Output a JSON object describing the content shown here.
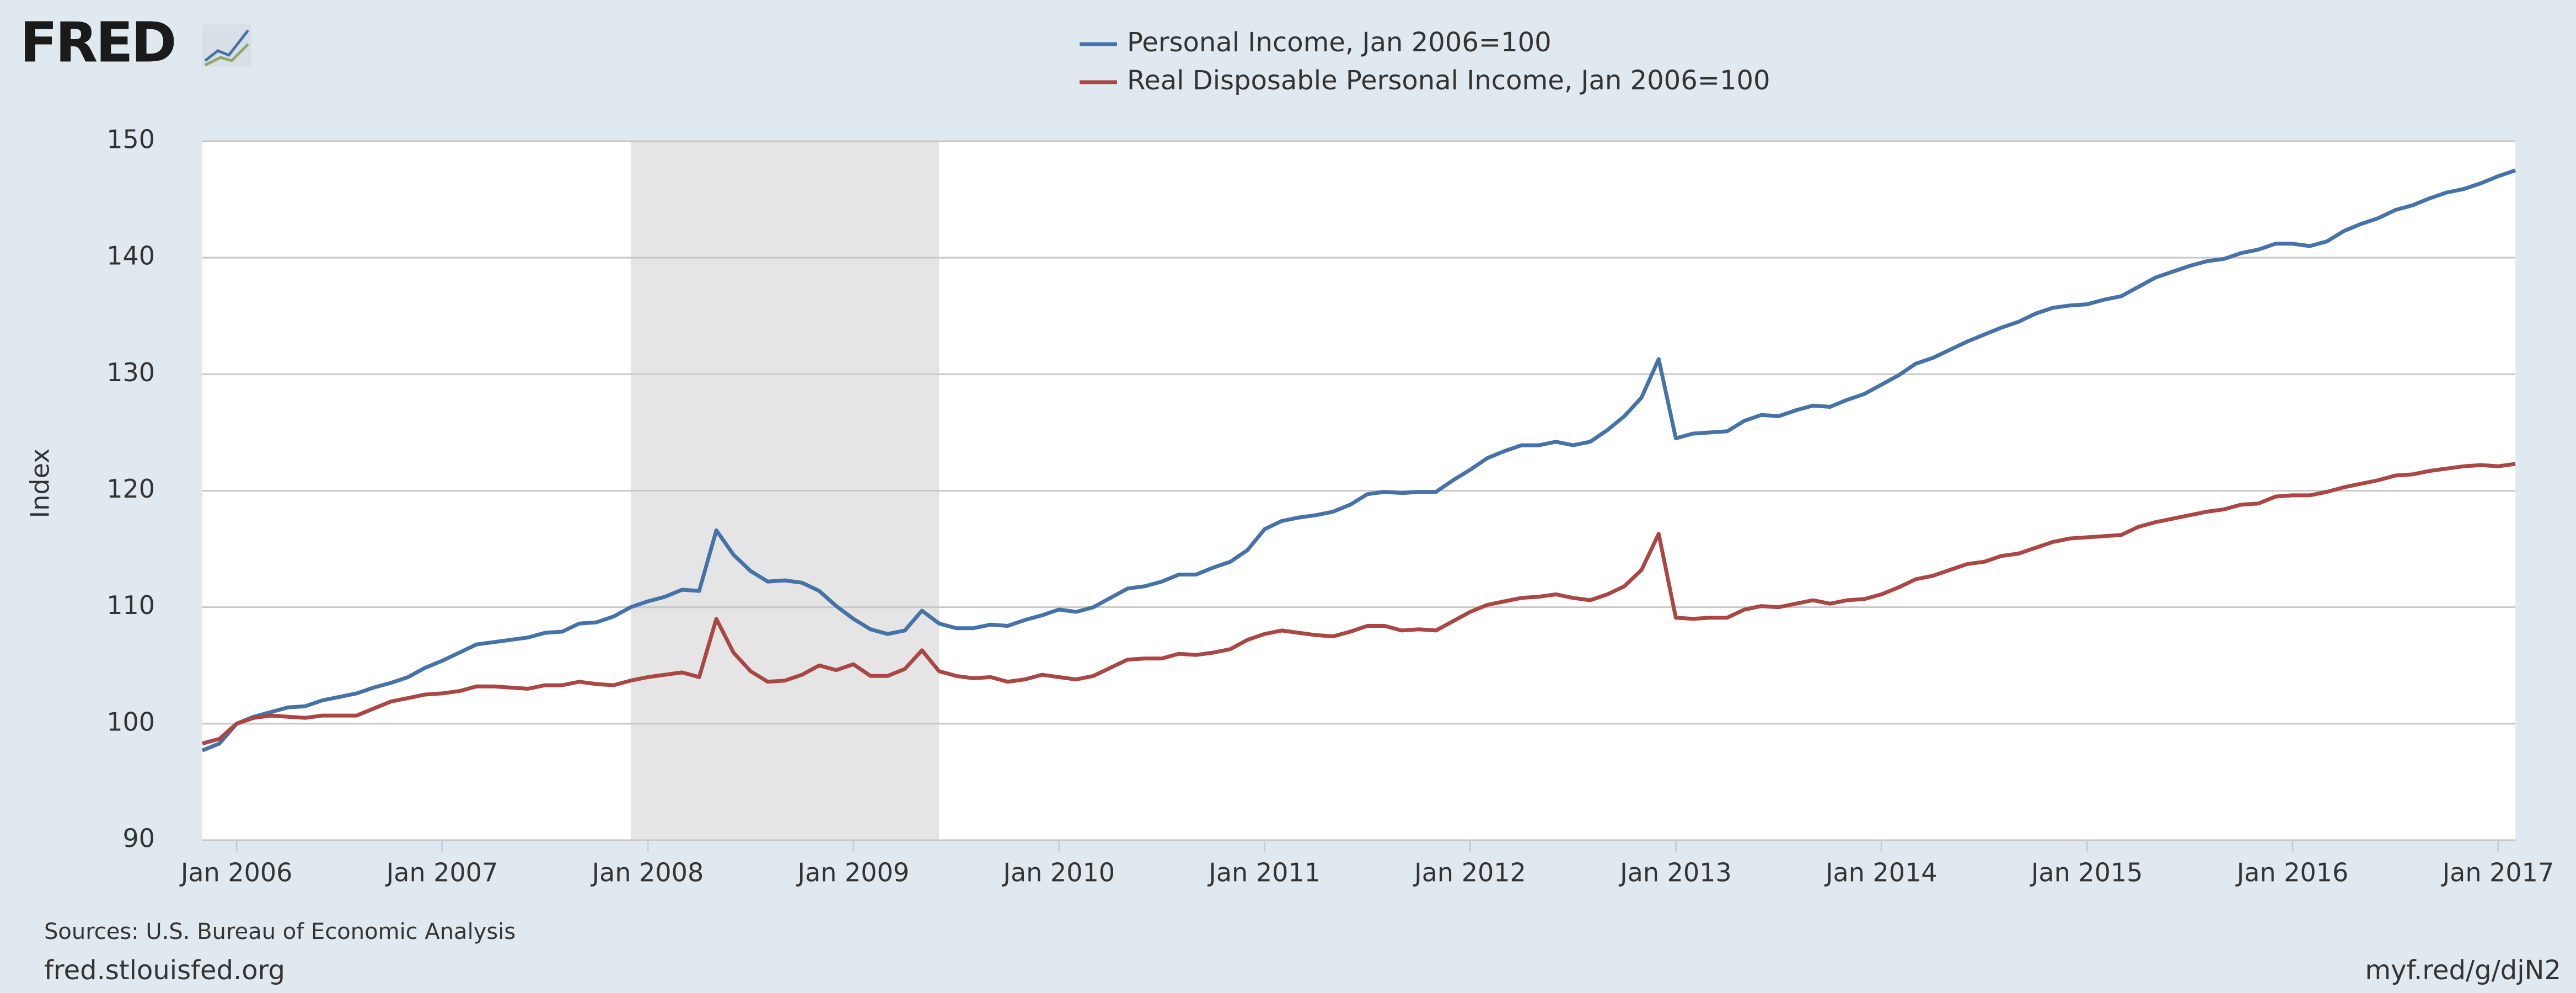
{
  "chart_data": {
    "type": "line",
    "logo": "FRED",
    "y_label": "Index",
    "source": "Sources: U.S. Bureau of Economic Analysis",
    "site": "fred.stlouisfed.org",
    "link": "myf.red/g/djN2",
    "x": [
      "2005-11",
      "2005-12",
      "2006-01",
      "2006-02",
      "2006-03",
      "2006-04",
      "2006-05",
      "2006-06",
      "2006-07",
      "2006-08",
      "2006-09",
      "2006-10",
      "2006-11",
      "2006-12",
      "2007-01",
      "2007-02",
      "2007-03",
      "2007-04",
      "2007-05",
      "2007-06",
      "2007-07",
      "2007-08",
      "2007-09",
      "2007-10",
      "2007-11",
      "2007-12",
      "2008-01",
      "2008-02",
      "2008-03",
      "2008-04",
      "2008-05",
      "2008-06",
      "2008-07",
      "2008-08",
      "2008-09",
      "2008-10",
      "2008-11",
      "2008-12",
      "2009-01",
      "2009-02",
      "2009-03",
      "2009-04",
      "2009-05",
      "2009-06",
      "2009-07",
      "2009-08",
      "2009-09",
      "2009-10",
      "2009-11",
      "2009-12",
      "2010-01",
      "2010-02",
      "2010-03",
      "2010-04",
      "2010-05",
      "2010-06",
      "2010-07",
      "2010-08",
      "2010-09",
      "2010-10",
      "2010-11",
      "2010-12",
      "2011-01",
      "2011-02",
      "2011-03",
      "2011-04",
      "2011-05",
      "2011-06",
      "2011-07",
      "2011-08",
      "2011-09",
      "2011-10",
      "2011-11",
      "2011-12",
      "2012-01",
      "2012-02",
      "2012-03",
      "2012-04",
      "2012-05",
      "2012-06",
      "2012-07",
      "2012-08",
      "2012-09",
      "2012-10",
      "2012-11",
      "2012-12",
      "2013-01",
      "2013-02",
      "2013-03",
      "2013-04",
      "2013-05",
      "2013-06",
      "2013-07",
      "2013-08",
      "2013-09",
      "2013-10",
      "2013-11",
      "2013-12",
      "2014-01",
      "2014-02",
      "2014-03",
      "2014-04",
      "2014-05",
      "2014-06",
      "2014-07",
      "2014-08",
      "2014-09",
      "2014-10",
      "2014-11",
      "2014-12",
      "2015-01",
      "2015-02",
      "2015-03",
      "2015-04",
      "2015-05",
      "2015-06",
      "2015-07",
      "2015-08",
      "2015-09",
      "2015-10",
      "2015-11",
      "2015-12",
      "2016-01",
      "2016-02",
      "2016-03",
      "2016-04",
      "2016-05",
      "2016-06",
      "2016-07",
      "2016-08",
      "2016-09",
      "2016-10",
      "2016-11",
      "2016-12",
      "2017-01",
      "2017-02"
    ],
    "series": [
      {
        "name": "Personal Income, Jan 2006=100",
        "color": "#4572a7",
        "values": [
          97.7,
          98.3,
          100,
          100.6,
          101.0,
          101.4,
          101.5,
          102.0,
          102.3,
          102.6,
          103.1,
          103.5,
          104.0,
          104.8,
          105.4,
          106.1,
          106.8,
          107.0,
          107.2,
          107.4,
          107.8,
          107.9,
          108.6,
          108.7,
          109.2,
          110.0,
          110.5,
          110.9,
          111.5,
          111.4,
          116.6,
          114.5,
          113.1,
          112.2,
          112.3,
          112.1,
          111.4,
          110.1,
          109.0,
          108.1,
          107.7,
          108.0,
          109.7,
          108.6,
          108.2,
          108.2,
          108.5,
          108.4,
          108.9,
          109.3,
          109.8,
          109.6,
          110.0,
          110.8,
          111.6,
          111.8,
          112.2,
          112.8,
          112.8,
          113.4,
          113.9,
          114.9,
          116.7,
          117.4,
          117.7,
          117.9,
          118.2,
          118.8,
          119.7,
          119.9,
          119.8,
          119.9,
          119.9,
          120.9,
          121.8,
          122.8,
          123.4,
          123.9,
          123.9,
          124.2,
          123.9,
          124.2,
          125.2,
          126.4,
          128.0,
          131.3,
          124.5,
          124.9,
          125.0,
          125.1,
          126.0,
          126.5,
          126.4,
          126.9,
          127.3,
          127.2,
          127.8,
          128.3,
          129.1,
          129.9,
          130.9,
          131.4,
          132.1,
          132.8,
          133.4,
          134.0,
          134.5,
          135.2,
          135.7,
          135.9,
          136.0,
          136.4,
          136.7,
          137.5,
          138.3,
          138.8,
          139.3,
          139.7,
          139.9,
          140.4,
          140.7,
          141.2,
          141.2,
          141.0,
          141.4,
          142.3,
          142.9,
          143.4,
          144.1,
          144.5,
          145.1,
          145.6,
          145.9,
          146.4,
          147.0,
          147.5
        ]
      },
      {
        "name": "Real Disposable Personal Income, Jan 2006=100",
        "color": "#aa4643",
        "values": [
          98.3,
          98.7,
          100,
          100.5,
          100.7,
          100.6,
          100.5,
          100.7,
          100.7,
          100.7,
          101.3,
          101.9,
          102.2,
          102.5,
          102.6,
          102.8,
          103.2,
          103.2,
          103.1,
          103.0,
          103.3,
          103.3,
          103.6,
          103.4,
          103.3,
          103.7,
          104.0,
          104.2,
          104.4,
          104.0,
          109.0,
          106.1,
          104.5,
          103.6,
          103.7,
          104.2,
          105.0,
          104.6,
          105.1,
          104.1,
          104.1,
          104.7,
          106.3,
          104.5,
          104.1,
          103.9,
          104.0,
          103.6,
          103.8,
          104.2,
          104.0,
          103.8,
          104.1,
          104.8,
          105.5,
          105.6,
          105.6,
          106.0,
          105.9,
          106.1,
          106.4,
          107.2,
          107.7,
          108.0,
          107.8,
          107.6,
          107.5,
          107.9,
          108.4,
          108.4,
          108.0,
          108.1,
          108.0,
          108.8,
          109.6,
          110.2,
          110.5,
          110.8,
          110.9,
          111.1,
          110.8,
          110.6,
          111.1,
          111.8,
          113.2,
          116.3,
          109.1,
          109.0,
          109.1,
          109.1,
          109.8,
          110.1,
          110.0,
          110.3,
          110.6,
          110.3,
          110.6,
          110.7,
          111.1,
          111.7,
          112.4,
          112.7,
          113.2,
          113.7,
          113.9,
          114.4,
          114.6,
          115.1,
          115.6,
          115.9,
          116.0,
          116.1,
          116.2,
          116.9,
          117.3,
          117.6,
          117.9,
          118.2,
          118.4,
          118.8,
          118.9,
          119.5,
          119.6,
          119.6,
          119.9,
          120.3,
          120.6,
          120.9,
          121.3,
          121.4,
          121.7,
          121.9,
          122.1,
          122.2,
          122.1,
          122.3
        ]
      }
    ],
    "recessions": [
      [
        "2007-12",
        "2009-06"
      ]
    ],
    "xlim": [
      "2005-11",
      "2017-02"
    ],
    "xticks": [
      {
        "value": "2006-01",
        "label": "Jan 2006"
      },
      {
        "value": "2007-01",
        "label": "Jan 2007"
      },
      {
        "value": "2008-01",
        "label": "Jan 2008"
      },
      {
        "value": "2009-01",
        "label": "Jan 2009"
      },
      {
        "value": "2010-01",
        "label": "Jan 2010"
      },
      {
        "value": "2011-01",
        "label": "Jan 2011"
      },
      {
        "value": "2012-01",
        "label": "Jan 2012"
      },
      {
        "value": "2013-01",
        "label": "Jan 2013"
      },
      {
        "value": "2014-01",
        "label": "Jan 2014"
      },
      {
        "value": "2015-01",
        "label": "Jan 2015"
      },
      {
        "value": "2016-01",
        "label": "Jan 2016"
      },
      {
        "value": "2017-01",
        "label": "Jan 2017"
      }
    ],
    "ylim": [
      90,
      150
    ],
    "yticks": [
      90,
      100,
      110,
      120,
      130,
      140,
      150
    ],
    "grid": true
  }
}
